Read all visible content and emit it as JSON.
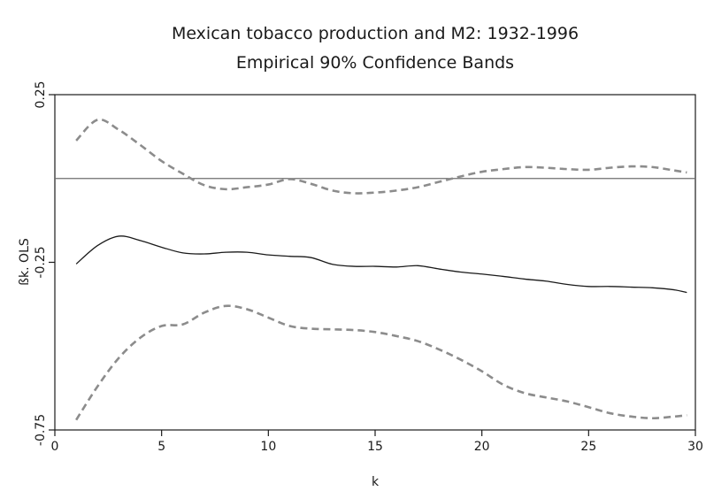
{
  "chart_data": {
    "type": "line",
    "title": "Mexican tobacco production and M2: 1932-1996",
    "subtitle": "Empirical 90% Confidence Bands",
    "xlabel": "k",
    "ylabel": "ßk. OLS",
    "xlim": [
      0,
      30
    ],
    "ylim": [
      -0.75,
      0.25
    ],
    "xticks": [
      0,
      5,
      10,
      15,
      20,
      25,
      30
    ],
    "xtick_labels": [
      "0",
      "5",
      "10",
      "15",
      "20",
      "25",
      "30"
    ],
    "yticks": [
      -0.75,
      -0.25,
      0.25
    ],
    "ytick_labels": [
      "-0.75",
      "-0.25",
      "0.25"
    ],
    "grid": false,
    "reference_line": {
      "y": 0,
      "color": "#6e6e6e"
    },
    "series": [
      {
        "style": "dashed",
        "color": "#8c8c8c",
        "x": [
          1,
          2,
          3,
          4,
          5,
          6,
          7,
          8,
          9,
          10,
          11,
          12,
          13,
          14,
          15,
          16,
          17,
          18,
          19,
          20,
          21,
          22,
          23,
          24,
          25,
          26,
          27,
          28,
          29,
          29.6
        ],
        "y": [
          0.113,
          0.175,
          0.145,
          0.1,
          0.052,
          0.014,
          -0.02,
          -0.032,
          -0.026,
          -0.018,
          -0.002,
          -0.016,
          -0.036,
          -0.044,
          -0.042,
          -0.036,
          -0.026,
          -0.01,
          0.006,
          0.02,
          0.028,
          0.034,
          0.032,
          0.028,
          0.026,
          0.032,
          0.036,
          0.034,
          0.024,
          0.018
        ]
      },
      {
        "style": "solid",
        "color": "#1a1a1a",
        "x": [
          1,
          2,
          3,
          4,
          5,
          6,
          7,
          8,
          9,
          10,
          11,
          12,
          13,
          14,
          15,
          16,
          17,
          18,
          19,
          20,
          21,
          22,
          23,
          24,
          25,
          26,
          27,
          28,
          29,
          29.6
        ],
        "y": [
          -0.255,
          -0.2,
          -0.172,
          -0.185,
          -0.205,
          -0.222,
          -0.225,
          -0.22,
          -0.22,
          -0.228,
          -0.232,
          -0.236,
          -0.256,
          -0.262,
          -0.262,
          -0.264,
          -0.26,
          -0.27,
          -0.279,
          -0.285,
          -0.292,
          -0.3,
          -0.306,
          -0.316,
          -0.322,
          -0.322,
          -0.324,
          -0.326,
          -0.332,
          -0.34
        ]
      },
      {
        "style": "dashed",
        "color": "#8c8c8c",
        "x": [
          1,
          2,
          3,
          4,
          5,
          6,
          7,
          8,
          9,
          10,
          11,
          12,
          13,
          14,
          15,
          16,
          17,
          18,
          19,
          20,
          21,
          22,
          23,
          24,
          25,
          26,
          27,
          28,
          29,
          29.6
        ],
        "y": [
          -0.72,
          -0.62,
          -0.535,
          -0.475,
          -0.44,
          -0.435,
          -0.4,
          -0.38,
          -0.39,
          -0.415,
          -0.44,
          -0.448,
          -0.45,
          -0.452,
          -0.458,
          -0.47,
          -0.485,
          -0.51,
          -0.54,
          -0.575,
          -0.615,
          -0.64,
          -0.653,
          -0.665,
          -0.682,
          -0.7,
          -0.71,
          -0.715,
          -0.71,
          -0.706
        ]
      }
    ]
  }
}
